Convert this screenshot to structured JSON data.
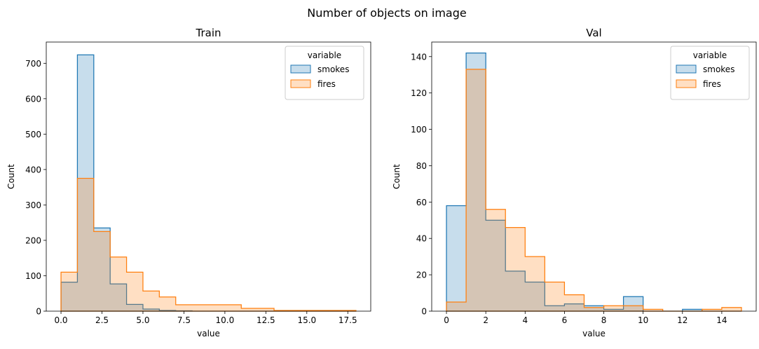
{
  "suptitle": "Number of objects on image",
  "colors": {
    "smokes": "#1f77b4",
    "fires": "#ff7f0e"
  },
  "chart_data": [
    {
      "type": "histogram",
      "title": "Train",
      "xlabel": "value",
      "ylabel": "Count",
      "xlim": [
        -0.9,
        18.9
      ],
      "ylim": [
        0,
        760
      ],
      "xticks": [
        "0.0",
        "2.5",
        "5.0",
        "7.5",
        "10.0",
        "12.5",
        "15.0",
        "17.5"
      ],
      "xtick_values": [
        0,
        2.5,
        5,
        7.5,
        10,
        12.5,
        15,
        17.5
      ],
      "yticks": [
        "0",
        "100",
        "200",
        "300",
        "400",
        "500",
        "600",
        "700"
      ],
      "ytick_values": [
        0,
        100,
        200,
        300,
        400,
        500,
        600,
        700
      ],
      "legend": {
        "title": "variable",
        "placement": "upper right"
      },
      "series": [
        {
          "name": "smokes",
          "bin_edges": [
            0,
            1,
            2,
            3,
            4,
            5,
            6,
            7,
            8,
            9,
            10,
            11,
            12,
            13,
            14,
            15,
            16,
            17,
            18
          ],
          "counts": [
            82,
            724,
            235,
            77,
            19,
            6,
            2,
            1,
            0,
            0,
            0,
            0,
            0,
            0,
            0,
            0,
            0,
            0
          ]
        },
        {
          "name": "fires",
          "bin_edges": [
            0,
            1,
            2,
            3,
            4,
            5,
            6,
            7,
            8,
            9,
            10,
            11,
            12,
            13,
            14,
            15,
            16,
            17,
            18
          ],
          "counts": [
            110,
            375,
            225,
            153,
            110,
            57,
            40,
            18,
            18,
            18,
            18,
            8,
            8,
            2,
            2,
            2,
            2,
            2
          ]
        }
      ]
    },
    {
      "type": "histogram",
      "title": "Val",
      "xlabel": "value",
      "ylabel": "Count",
      "xlim": [
        -0.75,
        15.75
      ],
      "ylim": [
        0,
        148
      ],
      "xticks": [
        "0",
        "2",
        "4",
        "6",
        "8",
        "10",
        "12",
        "14"
      ],
      "xtick_values": [
        0,
        2,
        4,
        6,
        8,
        10,
        12,
        14
      ],
      "yticks": [
        "0",
        "20",
        "40",
        "60",
        "80",
        "100",
        "120",
        "140"
      ],
      "ytick_values": [
        0,
        20,
        40,
        60,
        80,
        100,
        120,
        140
      ],
      "legend": {
        "title": "variable",
        "placement": "upper right"
      },
      "series": [
        {
          "name": "smokes",
          "bin_edges": [
            0,
            1,
            2,
            3,
            4,
            5,
            6,
            7,
            8,
            9,
            10,
            11,
            12,
            13,
            14,
            15
          ],
          "counts": [
            58,
            142,
            50,
            22,
            16,
            3,
            4,
            3,
            1,
            8,
            0,
            0,
            1,
            0,
            0
          ]
        },
        {
          "name": "fires",
          "bin_edges": [
            0,
            1,
            2,
            3,
            4,
            5,
            6,
            7,
            8,
            9,
            10,
            11,
            12,
            13,
            14,
            15
          ],
          "counts": [
            5,
            133,
            56,
            46,
            30,
            16,
            9,
            2,
            3,
            3,
            1,
            0,
            0,
            1,
            2
          ]
        }
      ]
    }
  ]
}
